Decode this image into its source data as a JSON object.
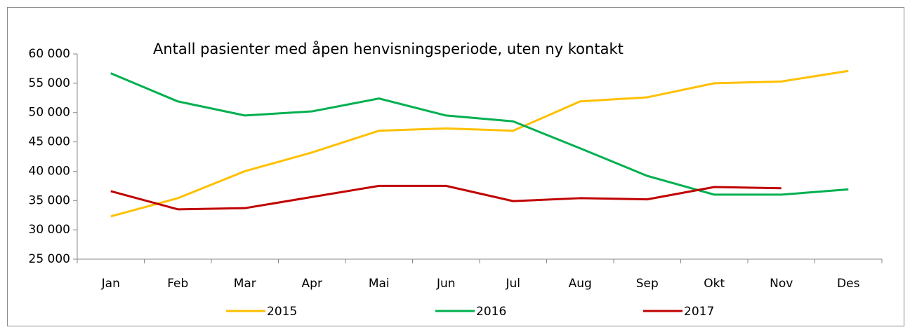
{
  "chart_data": {
    "type": "line",
    "title": "Antall pasienter med åpen henvisningsperiode, uten ny kontakt",
    "categories": [
      "Jan",
      "Feb",
      "Mar",
      "Apr",
      "Mai",
      "Jun",
      "Jul",
      "Aug",
      "Sep",
      "Okt",
      "Nov",
      "Des"
    ],
    "series": [
      {
        "name": "2015",
        "color": "#ffc000",
        "values": [
          32300,
          35400,
          40000,
          43200,
          46900,
          47300,
          46900,
          51900,
          52600,
          55000,
          55300,
          57100
        ]
      },
      {
        "name": "2016",
        "color": "#00b050",
        "values": [
          56700,
          51900,
          49500,
          50200,
          52400,
          49500,
          48500,
          43900,
          39200,
          36000,
          36000,
          36900
        ]
      },
      {
        "name": "2017",
        "color": "#c00000",
        "values": [
          36600,
          33500,
          33700,
          35600,
          37500,
          37500,
          34900,
          35400,
          35200,
          37300,
          37100,
          null
        ]
      }
    ],
    "ylim": [
      25000,
      60000
    ],
    "yticks": [
      {
        "value": 25000,
        "label": "25 000"
      },
      {
        "value": 30000,
        "label": "30 000"
      },
      {
        "value": 35000,
        "label": "35 000"
      },
      {
        "value": 40000,
        "label": "40 000"
      },
      {
        "value": 45000,
        "label": "45 000"
      },
      {
        "value": 50000,
        "label": "50 000"
      },
      {
        "value": 55000,
        "label": "55 000"
      },
      {
        "value": 60000,
        "label": "60 000"
      }
    ],
    "grid": false,
    "legend": "bottom"
  }
}
